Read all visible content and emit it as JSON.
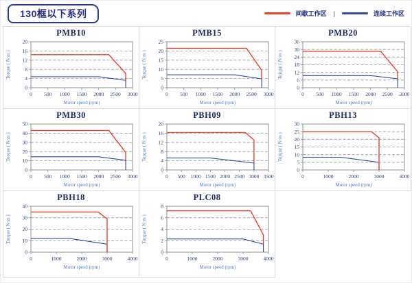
{
  "header": {
    "title": "130框以下系列"
  },
  "legend": {
    "intermittent_label": "间歇工作区",
    "separator": "|",
    "continuous_label": "连续工作区"
  },
  "colors": {
    "intermittent": "#e8432a",
    "continuous": "#2e4a96",
    "tick_text": "#33417a",
    "axis_label": "#4a7dc9",
    "plot_border": "#8f8f8f",
    "gridline": "#999999",
    "cell_border": "#d9d9d9",
    "header_navy": "#252f7e"
  },
  "chart_data": [
    {
      "type": "line",
      "title": "PMB10",
      "xlabel": "Motor speed (rpm)",
      "ylabel": "Torque ( N·m )",
      "xlim": [
        0,
        3000
      ],
      "xstep": 500,
      "ylim": [
        0,
        20
      ],
      "ystep": 4,
      "series": [
        {
          "name": "间歇工作区",
          "role": "intermittent",
          "points": [
            [
              0,
              14.4
            ],
            [
              2300,
              14.4
            ],
            [
              2800,
              6.2
            ],
            [
              2800,
              3.2
            ]
          ]
        },
        {
          "name": "连续工作区",
          "role": "continuous",
          "points": [
            [
              0,
              4.8
            ],
            [
              2000,
              4.8
            ],
            [
              2800,
              3.2
            ],
            [
              2800,
              0
            ]
          ]
        }
      ]
    },
    {
      "type": "line",
      "title": "PMB15",
      "xlabel": "Motor speed (rpm)",
      "ylabel": "Torque ( N·m )",
      "xlim": [
        0,
        3000
      ],
      "xstep": 500,
      "ylim": [
        0,
        25
      ],
      "ystep": 5,
      "series": [
        {
          "name": "间歇工作区",
          "role": "intermittent",
          "points": [
            [
              0,
              21.5
            ],
            [
              2350,
              21.5
            ],
            [
              2800,
              9.5
            ],
            [
              2800,
              4.8
            ]
          ]
        },
        {
          "name": "连续工作区",
          "role": "continuous",
          "points": [
            [
              0,
              7
            ],
            [
              2000,
              7
            ],
            [
              2800,
              4.8
            ],
            [
              2800,
              0
            ]
          ]
        }
      ]
    },
    {
      "type": "line",
      "title": "PMB20",
      "xlabel": "Motor speed (rpm)",
      "ylabel": "Torque ( N·m )",
      "xlim": [
        0,
        3000
      ],
      "xstep": 500,
      "ylim": [
        0,
        36
      ],
      "ystep": 6,
      "series": [
        {
          "name": "间歇工作区",
          "role": "intermittent",
          "points": [
            [
              0,
              28.6
            ],
            [
              2300,
              28.6
            ],
            [
              2800,
              12.5
            ],
            [
              2800,
              7
            ]
          ]
        },
        {
          "name": "连续工作区",
          "role": "continuous",
          "points": [
            [
              0,
              9.5
            ],
            [
              2000,
              9.5
            ],
            [
              2800,
              7
            ],
            [
              2800,
              0
            ]
          ]
        }
      ]
    },
    {
      "type": "line",
      "title": "PMB30",
      "xlabel": "Motor speed (rpm)",
      "ylabel": "Torque ( N·m )",
      "xlim": [
        0,
        3000
      ],
      "xstep": 500,
      "ylim": [
        0,
        50
      ],
      "ystep": 10,
      "series": [
        {
          "name": "间歇工作区",
          "role": "intermittent",
          "points": [
            [
              0,
              43
            ],
            [
              2300,
              43
            ],
            [
              2800,
              19
            ],
            [
              2800,
              10.5
            ]
          ]
        },
        {
          "name": "连续工作区",
          "role": "continuous",
          "points": [
            [
              0,
              14.3
            ],
            [
              2000,
              14.3
            ],
            [
              2800,
              10.5
            ],
            [
              2800,
              0
            ]
          ]
        }
      ]
    },
    {
      "type": "line",
      "title": "PBH09",
      "xlabel": "Motor speed (rpm)",
      "ylabel": "Torque ( N·m )",
      "xlim": [
        0,
        3500
      ],
      "xstep": 500,
      "ylim": [
        0,
        20
      ],
      "ystep": 4,
      "series": [
        {
          "name": "间歇工作区",
          "role": "intermittent",
          "points": [
            [
              0,
              16.3
            ],
            [
              2700,
              16.3
            ],
            [
              3000,
              13
            ],
            [
              3000,
              3
            ]
          ]
        },
        {
          "name": "连续工作区",
          "role": "continuous",
          "points": [
            [
              0,
              5.2
            ],
            [
              1500,
              5.2
            ],
            [
              3000,
              3
            ],
            [
              3000,
              0
            ]
          ]
        }
      ]
    },
    {
      "type": "line",
      "title": "PBH13",
      "xlabel": "Motor speed (rpm)",
      "ylabel": "Torque ( N·m )",
      "xlim": [
        0,
        4000
      ],
      "xstep": 1000,
      "ylim": [
        0,
        30
      ],
      "ystep": 5,
      "series": [
        {
          "name": "间歇工作区",
          "role": "intermittent",
          "points": [
            [
              0,
              25
            ],
            [
              2700,
              25
            ],
            [
              3000,
              21
            ],
            [
              3000,
              0
            ]
          ]
        },
        {
          "name": "连续工作区",
          "role": "continuous",
          "points": [
            [
              0,
              8.3
            ],
            [
              1500,
              8.3
            ],
            [
              3000,
              5
            ],
            [
              3000,
              0
            ]
          ]
        }
      ]
    },
    {
      "type": "line",
      "title": "PBH18",
      "xlabel": "Motor speed (rpm)",
      "ylabel": "Torque ( N·m )",
      "xlim": [
        0,
        4000
      ],
      "xstep": 1000,
      "ylim": [
        0,
        40
      ],
      "ystep": 10,
      "series": [
        {
          "name": "间歇工作区",
          "role": "intermittent",
          "points": [
            [
              0,
              35
            ],
            [
              2650,
              35
            ],
            [
              3000,
              29
            ],
            [
              3000,
              0
            ]
          ]
        },
        {
          "name": "连续工作区",
          "role": "continuous",
          "points": [
            [
              0,
              12
            ],
            [
              1500,
              12
            ],
            [
              3000,
              7
            ],
            [
              3000,
              0
            ]
          ]
        }
      ]
    },
    {
      "type": "line",
      "title": "PLC08",
      "xlabel": "Motor speed (rpm)",
      "ylabel": "Torque ( N·m )",
      "xlim": [
        0,
        4000
      ],
      "xstep": 1000,
      "ylim": [
        0,
        8
      ],
      "ystep": 2,
      "series": [
        {
          "name": "间歇工作区",
          "role": "intermittent",
          "points": [
            [
              0,
              7.2
            ],
            [
              3300,
              7.2
            ],
            [
              3800,
              3
            ],
            [
              3800,
              1.4
            ]
          ]
        },
        {
          "name": "连续工作区",
          "role": "continuous",
          "points": [
            [
              0,
              2.3
            ],
            [
              3000,
              2.3
            ],
            [
              3800,
              1.4
            ],
            [
              3800,
              0
            ]
          ]
        }
      ]
    }
  ]
}
